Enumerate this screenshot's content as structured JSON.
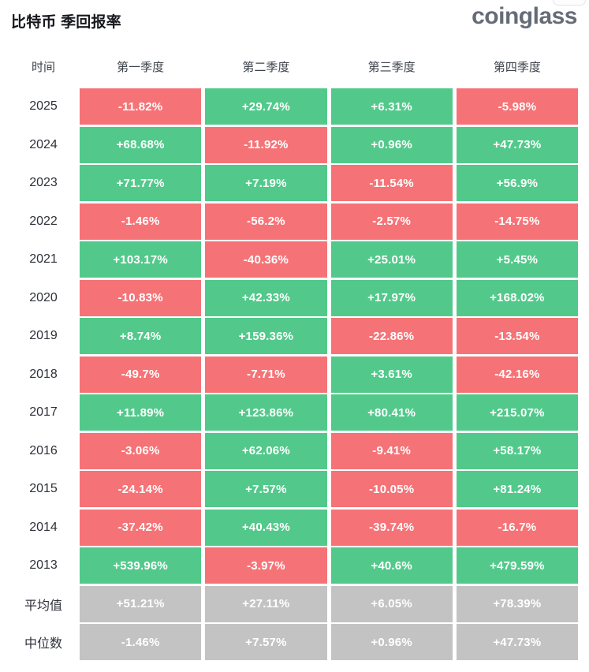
{
  "header": {
    "title": "比特币 季回报率",
    "logo_text": "coinglass"
  },
  "colors": {
    "positive": "#52c98b",
    "negative": "#f57377",
    "neutral": "#c3c3c3",
    "cell_text": "#ffffff"
  },
  "table": {
    "columns": [
      "时间",
      "第一季度",
      "第二季度",
      "第三季度",
      "第四季度"
    ],
    "rows": [
      {
        "label": "2025",
        "kind": "year",
        "cells": [
          "-11.82%",
          "+29.74%",
          "+6.31%",
          "-5.98%"
        ]
      },
      {
        "label": "2024",
        "kind": "year",
        "cells": [
          "+68.68%",
          "-11.92%",
          "+0.96%",
          "+47.73%"
        ]
      },
      {
        "label": "2023",
        "kind": "year",
        "cells": [
          "+71.77%",
          "+7.19%",
          "-11.54%",
          "+56.9%"
        ]
      },
      {
        "label": "2022",
        "kind": "year",
        "cells": [
          "-1.46%",
          "-56.2%",
          "-2.57%",
          "-14.75%"
        ]
      },
      {
        "label": "2021",
        "kind": "year",
        "cells": [
          "+103.17%",
          "-40.36%",
          "+25.01%",
          "+5.45%"
        ]
      },
      {
        "label": "2020",
        "kind": "year",
        "cells": [
          "-10.83%",
          "+42.33%",
          "+17.97%",
          "+168.02%"
        ]
      },
      {
        "label": "2019",
        "kind": "year",
        "cells": [
          "+8.74%",
          "+159.36%",
          "-22.86%",
          "-13.54%"
        ]
      },
      {
        "label": "2018",
        "kind": "year",
        "cells": [
          "-49.7%",
          "-7.71%",
          "+3.61%",
          "-42.16%"
        ]
      },
      {
        "label": "2017",
        "kind": "year",
        "cells": [
          "+11.89%",
          "+123.86%",
          "+80.41%",
          "+215.07%"
        ]
      },
      {
        "label": "2016",
        "kind": "year",
        "cells": [
          "-3.06%",
          "+62.06%",
          "-9.41%",
          "+58.17%"
        ]
      },
      {
        "label": "2015",
        "kind": "year",
        "cells": [
          "-24.14%",
          "+7.57%",
          "-10.05%",
          "+81.24%"
        ]
      },
      {
        "label": "2014",
        "kind": "year",
        "cells": [
          "-37.42%",
          "+40.43%",
          "-39.74%",
          "-16.7%"
        ]
      },
      {
        "label": "2013",
        "kind": "year",
        "cells": [
          "+539.96%",
          "-3.97%",
          "+40.6%",
          "+479.59%"
        ]
      },
      {
        "label": "平均值",
        "kind": "summary",
        "cells": [
          "+51.21%",
          "+27.11%",
          "+6.05%",
          "+78.39%"
        ]
      },
      {
        "label": "中位数",
        "kind": "summary",
        "cells": [
          "-1.46%",
          "+7.57%",
          "+0.96%",
          "+47.73%"
        ]
      }
    ]
  },
  "chart_data": {
    "type": "table",
    "title": "比特币 季回报率",
    "categories": [
      "第一季度",
      "第二季度",
      "第三季度",
      "第四季度"
    ],
    "series": [
      {
        "name": "2025",
        "values": [
          -11.82,
          29.74,
          6.31,
          -5.98
        ]
      },
      {
        "name": "2024",
        "values": [
          68.68,
          -11.92,
          0.96,
          47.73
        ]
      },
      {
        "name": "2023",
        "values": [
          71.77,
          7.19,
          -11.54,
          56.9
        ]
      },
      {
        "name": "2022",
        "values": [
          -1.46,
          -56.2,
          -2.57,
          -14.75
        ]
      },
      {
        "name": "2021",
        "values": [
          103.17,
          -40.36,
          25.01,
          5.45
        ]
      },
      {
        "name": "2020",
        "values": [
          -10.83,
          42.33,
          17.97,
          168.02
        ]
      },
      {
        "name": "2019",
        "values": [
          8.74,
          159.36,
          -22.86,
          -13.54
        ]
      },
      {
        "name": "2018",
        "values": [
          -49.7,
          -7.71,
          3.61,
          -42.16
        ]
      },
      {
        "name": "2017",
        "values": [
          11.89,
          123.86,
          80.41,
          215.07
        ]
      },
      {
        "name": "2016",
        "values": [
          -3.06,
          62.06,
          -9.41,
          58.17
        ]
      },
      {
        "name": "2015",
        "values": [
          -24.14,
          7.57,
          -10.05,
          81.24
        ]
      },
      {
        "name": "2014",
        "values": [
          -37.42,
          40.43,
          -39.74,
          -16.7
        ]
      },
      {
        "name": "2013",
        "values": [
          539.96,
          -3.97,
          40.6,
          479.59
        ]
      },
      {
        "name": "平均值",
        "values": [
          51.21,
          27.11,
          6.05,
          78.39
        ]
      },
      {
        "name": "中位数",
        "values": [
          -1.46,
          7.57,
          0.96,
          47.73
        ]
      }
    ],
    "value_unit": "%",
    "legend": "none",
    "color_rule": "negative values red, positive values green, summary rows (平均值/中位数) gray"
  }
}
